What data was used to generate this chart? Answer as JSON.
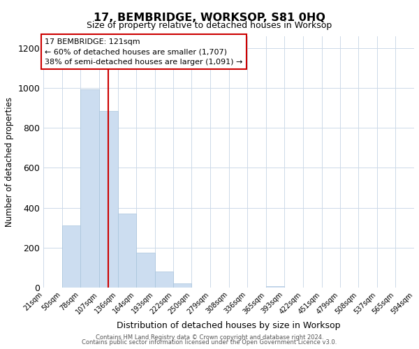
{
  "title": "17, BEMBRIDGE, WORKSOP, S81 0HQ",
  "subtitle": "Size of property relative to detached houses in Worksop",
  "xlabel": "Distribution of detached houses by size in Worksop",
  "ylabel": "Number of detached properties",
  "bin_labels": [
    "21sqm",
    "50sqm",
    "78sqm",
    "107sqm",
    "136sqm",
    "164sqm",
    "193sqm",
    "222sqm",
    "250sqm",
    "279sqm",
    "308sqm",
    "336sqm",
    "365sqm",
    "393sqm",
    "422sqm",
    "451sqm",
    "479sqm",
    "508sqm",
    "537sqm",
    "565sqm",
    "594sqm"
  ],
  "bin_edges": [
    21,
    50,
    78,
    107,
    136,
    164,
    193,
    222,
    250,
    279,
    308,
    336,
    365,
    393,
    422,
    451,
    479,
    508,
    537,
    565,
    594
  ],
  "bar_heights": [
    0,
    310,
    993,
    885,
    370,
    175,
    80,
    20,
    0,
    0,
    0,
    0,
    5,
    0,
    0,
    0,
    0,
    0,
    0,
    0
  ],
  "bar_color": "#ccddf0",
  "bar_edge_color": "#a8c4dc",
  "property_size": 121,
  "property_line_color": "#cc0000",
  "annotation_box_color": "#ffffff",
  "annotation_box_edge": "#cc0000",
  "annotation_title": "17 BEMBRIDGE: 121sqm",
  "annotation_line1": "← 60% of detached houses are smaller (1,707)",
  "annotation_line2": "38% of semi-detached houses are larger (1,091) →",
  "ylim": [
    0,
    1260
  ],
  "yticks": [
    0,
    200,
    400,
    600,
    800,
    1000,
    1200
  ],
  "footer1": "Contains HM Land Registry data © Crown copyright and database right 2024.",
  "footer2": "Contains public sector information licensed under the Open Government Licence v3.0.",
  "background_color": "#ffffff",
  "grid_color": "#ccd9e8"
}
